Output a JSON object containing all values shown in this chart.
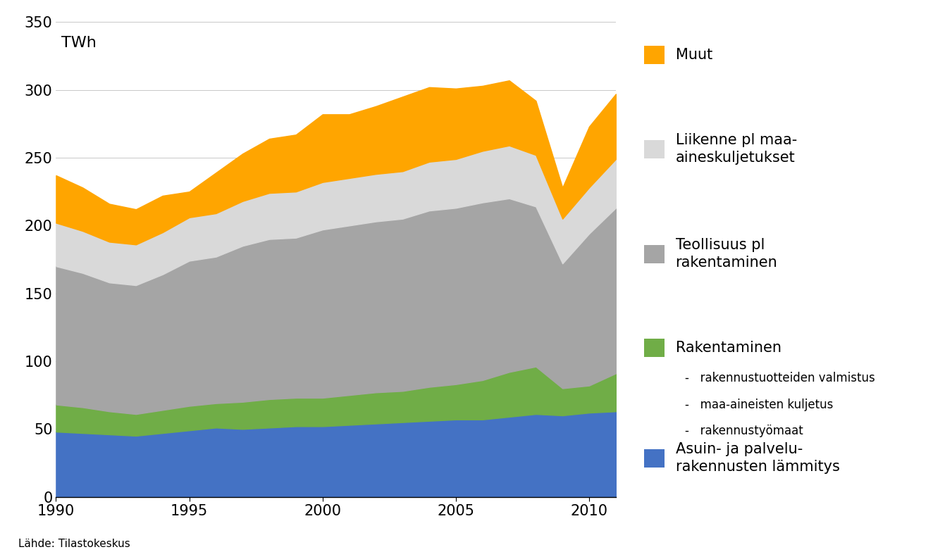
{
  "years": [
    1990,
    1991,
    1992,
    1993,
    1994,
    1995,
    1996,
    1997,
    1998,
    1999,
    2000,
    2001,
    2002,
    2003,
    2004,
    2005,
    2006,
    2007,
    2008,
    2009,
    2010,
    2011
  ],
  "asuin_lammitys": [
    48,
    47,
    46,
    45,
    47,
    49,
    51,
    50,
    51,
    52,
    52,
    53,
    54,
    55,
    56,
    57,
    57,
    59,
    61,
    60,
    62,
    63
  ],
  "rakentaminen": [
    20,
    19,
    17,
    16,
    17,
    18,
    18,
    20,
    21,
    21,
    21,
    22,
    23,
    23,
    25,
    26,
    29,
    33,
    35,
    20,
    20,
    28
  ],
  "teollisuus": [
    102,
    99,
    95,
    95,
    100,
    107,
    108,
    115,
    118,
    118,
    124,
    125,
    126,
    127,
    130,
    130,
    131,
    128,
    118,
    92,
    112,
    122
  ],
  "liikenne": [
    32,
    31,
    30,
    30,
    31,
    32,
    32,
    33,
    34,
    34,
    35,
    35,
    35,
    35,
    36,
    36,
    38,
    39,
    38,
    33,
    34,
    36
  ],
  "muut": [
    35,
    32,
    28,
    26,
    27,
    19,
    30,
    35,
    40,
    42,
    50,
    47,
    50,
    55,
    55,
    52,
    48,
    48,
    40,
    23,
    45,
    48
  ],
  "color_asuin": "#4472C4",
  "color_rakentaminen": "#70AD47",
  "color_teollisuus": "#A5A5A5",
  "color_liikenne": "#D9D9D9",
  "color_muut": "#FFA500",
  "ylim": [
    0,
    350
  ],
  "yticks": [
    0,
    50,
    100,
    150,
    200,
    250,
    300,
    350
  ],
  "xlim": [
    1990,
    2011
  ],
  "xticks": [
    1990,
    1995,
    2000,
    2005,
    2010
  ],
  "twh_label": "TWh",
  "source_text": "Lähde: Tilastokeskus",
  "legend_entries": [
    {
      "label": "Muut",
      "color": "#FFA500"
    },
    {
      "label": "Liikenne pl maa-\naineskuljetukset",
      "color": "#D9D9D9"
    },
    {
      "label": "Teollisuus pl\nrakentaminen",
      "color": "#A5A5A5"
    },
    {
      "label": "Rakentaminen",
      "color": "#70AD47"
    },
    {
      "label": "Asuin- ja palvelu-\nrakennusten lämmitys",
      "color": "#4472C4"
    }
  ],
  "sub_labels": [
    "rakennustuotteiden valmistus",
    "maa-aineisten kuljetus",
    "rakennustyömaat"
  ]
}
